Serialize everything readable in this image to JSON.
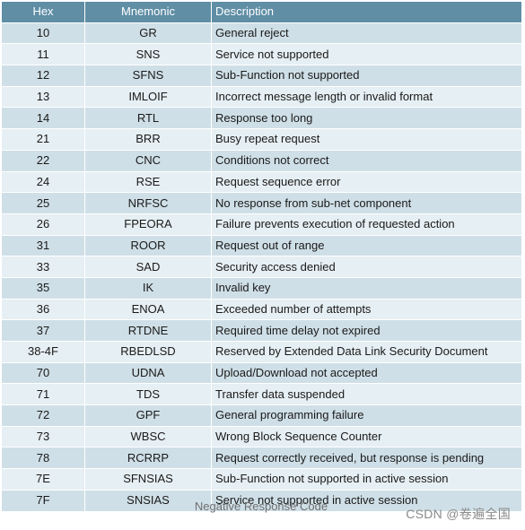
{
  "table": {
    "headers": {
      "hex": "Hex",
      "mnemonic": "Mnemonic",
      "description": "Description"
    },
    "rows": [
      {
        "hex": "10",
        "mnemonic": "GR",
        "description": "General reject"
      },
      {
        "hex": "11",
        "mnemonic": "SNS",
        "description": "Service not supported"
      },
      {
        "hex": "12",
        "mnemonic": "SFNS",
        "description": "Sub-Function not supported"
      },
      {
        "hex": "13",
        "mnemonic": "IMLOIF",
        "description": "Incorrect message length or invalid format"
      },
      {
        "hex": "14",
        "mnemonic": "RTL",
        "description": "Response too long"
      },
      {
        "hex": "21",
        "mnemonic": "BRR",
        "description": "Busy repeat request"
      },
      {
        "hex": "22",
        "mnemonic": "CNC",
        "description": "Conditions not correct"
      },
      {
        "hex": "24",
        "mnemonic": "RSE",
        "description": "Request sequence error"
      },
      {
        "hex": "25",
        "mnemonic": "NRFSC",
        "description": "No response from sub-net component"
      },
      {
        "hex": "26",
        "mnemonic": "FPEORA",
        "description": "Failure prevents execution of requested action"
      },
      {
        "hex": "31",
        "mnemonic": "ROOR",
        "description": "Request out of range"
      },
      {
        "hex": "33",
        "mnemonic": "SAD",
        "description": "Security access denied"
      },
      {
        "hex": "35",
        "mnemonic": "IK",
        "description": "Invalid key"
      },
      {
        "hex": "36",
        "mnemonic": "ENOA",
        "description": "Exceeded number of attempts"
      },
      {
        "hex": "37",
        "mnemonic": "RTDNE",
        "description": "Required time delay not expired"
      },
      {
        "hex": "38-4F",
        "mnemonic": "RBEDLSD",
        "description": "Reserved by Extended Data Link Security Document"
      },
      {
        "hex": "70",
        "mnemonic": "UDNA",
        "description": "Upload/Download not accepted"
      },
      {
        "hex": "71",
        "mnemonic": "TDS",
        "description": "Transfer data suspended"
      },
      {
        "hex": "72",
        "mnemonic": "GPF",
        "description": "General programming failure"
      },
      {
        "hex": "73",
        "mnemonic": "WBSC",
        "description": "Wrong Block Sequence Counter"
      },
      {
        "hex": "78",
        "mnemonic": "RCRRP",
        "description": "Request correctly received, but response is pending"
      },
      {
        "hex": "7E",
        "mnemonic": "SFNSIAS",
        "description": "Sub-Function not supported in active session"
      },
      {
        "hex": "7F",
        "mnemonic": "SNSIAS",
        "description": "Service not supported in active session"
      }
    ]
  },
  "caption": "Negative Response Code",
  "watermark": "CSDN @卷遍全国",
  "colors": {
    "header": "#5f8ea5",
    "row_dark": "#cfdfe7",
    "row_light": "#e6eff3"
  }
}
